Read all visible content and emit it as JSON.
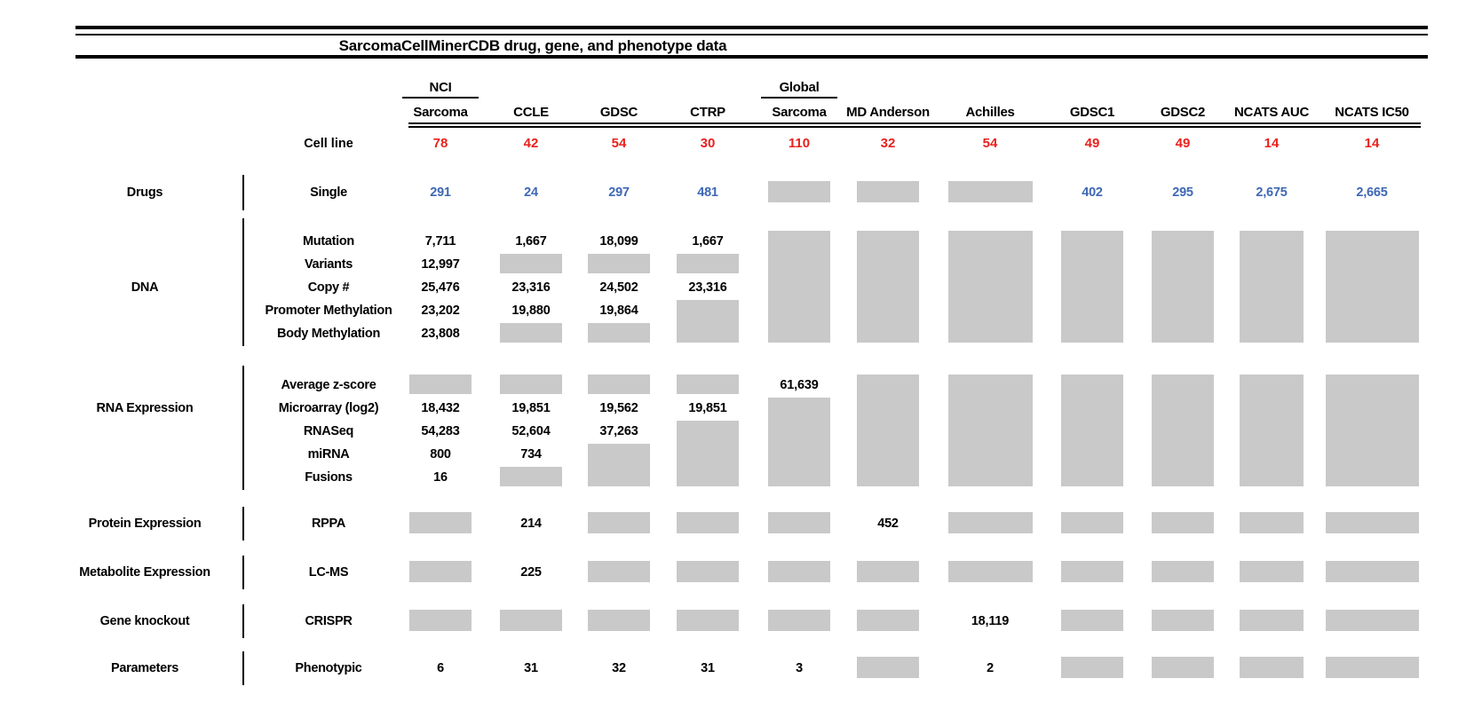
{
  "title": "SarcomaCellMinerCDB drug, gene, and phenotype data",
  "cell_line_label": "Cell line",
  "colors": {
    "count_red": "#e8211d",
    "drug_blue": "#3e68b5",
    "gap_gray": "#c9c9c9",
    "line_black": "#000000"
  },
  "columns": [
    {
      "label_top": "NCI",
      "label": "Sarcoma",
      "cell_lines": "78"
    },
    {
      "label": "CCLE",
      "cell_lines": "42"
    },
    {
      "label": "GDSC",
      "cell_lines": "54"
    },
    {
      "label": "CTRP",
      "cell_lines": "30"
    },
    {
      "label_top": "Global",
      "label": "Sarcoma",
      "cell_lines": "110"
    },
    {
      "label": "MD Anderson",
      "cell_lines": "32"
    },
    {
      "label": "Achilles",
      "cell_lines": "54"
    },
    {
      "label": "GDSC1",
      "cell_lines": "49"
    },
    {
      "label": "GDSC2",
      "cell_lines": "49"
    },
    {
      "label": "NCATS AUC",
      "cell_lines": "14"
    },
    {
      "label": "NCATS IC50",
      "cell_lines": "14"
    }
  ],
  "sections": [
    {
      "category": "Drugs",
      "value_color": "blue",
      "rows": [
        {
          "label": "Single",
          "cells": [
            {
              "v": "291"
            },
            {
              "v": "24"
            },
            {
              "v": "297"
            },
            {
              "v": "481"
            },
            {
              "b": 1
            },
            {
              "b": 1
            },
            {
              "b": 1
            },
            {
              "v": "402"
            },
            {
              "v": "295"
            },
            {
              "v": "2,675"
            },
            {
              "v": "2,665"
            }
          ]
        }
      ]
    },
    {
      "category": "DNA",
      "rows": [
        {
          "label": "Mutation",
          "cells": [
            {
              "v": "7,711"
            },
            {
              "v": "1,667"
            },
            {
              "v": "18,099"
            },
            {
              "v": "1,667"
            },
            {
              "b": 5
            },
            {
              "b": 5
            },
            {
              "b": 5
            },
            {
              "b": 5
            },
            {
              "b": 5
            },
            {
              "b": 5
            },
            {
              "b": 5
            }
          ]
        },
        {
          "label": "Variants",
          "cells": [
            {
              "v": "12,997"
            },
            {
              "b": 1
            },
            {
              "b": 1
            },
            {
              "b": 1
            },
            null,
            null,
            null,
            null,
            null,
            null,
            null
          ]
        },
        {
          "label": "Copy #",
          "cells": [
            {
              "v": "25,476"
            },
            {
              "v": "23,316"
            },
            {
              "v": "24,502"
            },
            {
              "v": "23,316"
            },
            null,
            null,
            null,
            null,
            null,
            null,
            null
          ]
        },
        {
          "label": "Promoter Methylation",
          "cells": [
            {
              "v": "23,202"
            },
            {
              "v": "19,880"
            },
            {
              "v": "19,864"
            },
            {
              "b": 2
            },
            null,
            null,
            null,
            null,
            null,
            null,
            null
          ]
        },
        {
          "label": "Body Methylation",
          "cells": [
            {
              "v": "23,808"
            },
            {
              "b": 1
            },
            {
              "b": 1
            },
            null,
            null,
            null,
            null,
            null,
            null,
            null,
            null
          ]
        }
      ]
    },
    {
      "category": "RNA Expression",
      "rows": [
        {
          "label": "Average z-score",
          "cells": [
            {
              "b": 1
            },
            {
              "b": 1
            },
            {
              "b": 1
            },
            {
              "b": 1
            },
            {
              "v": "61,639"
            },
            {
              "b": 5
            },
            {
              "b": 5
            },
            {
              "b": 5
            },
            {
              "b": 5
            },
            {
              "b": 5
            },
            {
              "b": 5
            }
          ]
        },
        {
          "label": "Microarray (log2)",
          "cells": [
            {
              "v": "18,432"
            },
            {
              "v": "19,851"
            },
            {
              "v": "19,562"
            },
            {
              "v": "19,851"
            },
            {
              "b": 4
            },
            null,
            null,
            null,
            null,
            null,
            null
          ]
        },
        {
          "label": "RNASeq",
          "cells": [
            {
              "v": "54,283"
            },
            {
              "v": "52,604"
            },
            {
              "v": "37,263"
            },
            {
              "b": 3
            },
            null,
            null,
            null,
            null,
            null,
            null,
            null
          ]
        },
        {
          "label": "miRNA",
          "cells": [
            {
              "v": "800"
            },
            {
              "v": "734"
            },
            {
              "b": 2
            },
            null,
            null,
            null,
            null,
            null,
            null,
            null,
            null
          ]
        },
        {
          "label": "Fusions",
          "cells": [
            {
              "v": "16"
            },
            {
              "b": 1
            },
            null,
            null,
            null,
            null,
            null,
            null,
            null,
            null,
            null
          ]
        }
      ]
    },
    {
      "category": "Protein Expression",
      "rows": [
        {
          "label": "RPPA",
          "cells": [
            {
              "b": 1
            },
            {
              "v": "214"
            },
            {
              "b": 1
            },
            {
              "b": 1
            },
            {
              "b": 1
            },
            {
              "v": "452"
            },
            {
              "b": 1
            },
            {
              "b": 1
            },
            {
              "b": 1
            },
            {
              "b": 1
            },
            {
              "b": 1
            }
          ]
        }
      ]
    },
    {
      "category": "Metabolite Expression",
      "rows": [
        {
          "label": "LC-MS",
          "cells": [
            {
              "b": 1
            },
            {
              "v": "225"
            },
            {
              "b": 1
            },
            {
              "b": 1
            },
            {
              "b": 1
            },
            {
              "b": 1
            },
            {
              "b": 1
            },
            {
              "b": 1
            },
            {
              "b": 1
            },
            {
              "b": 1
            },
            {
              "b": 1
            }
          ]
        }
      ]
    },
    {
      "category": "Gene knockout",
      "rows": [
        {
          "label": "CRISPR",
          "cells": [
            {
              "b": 1
            },
            {
              "b": 1
            },
            {
              "b": 1
            },
            {
              "b": 1
            },
            {
              "b": 1
            },
            {
              "b": 1
            },
            {
              "v": "18,119"
            },
            {
              "b": 1
            },
            {
              "b": 1
            },
            {
              "b": 1
            },
            {
              "b": 1
            }
          ]
        }
      ]
    },
    {
      "category": "Parameters",
      "rows": [
        {
          "label": "Phenotypic",
          "cells": [
            {
              "v": "6"
            },
            {
              "v": "31"
            },
            {
              "v": "32"
            },
            {
              "v": "31"
            },
            {
              "v": "3"
            },
            {
              "b": 1
            },
            {
              "v": "2"
            },
            {
              "b": 1
            },
            {
              "b": 1
            },
            {
              "b": 1
            },
            {
              "b": 1
            }
          ]
        }
      ]
    }
  ]
}
